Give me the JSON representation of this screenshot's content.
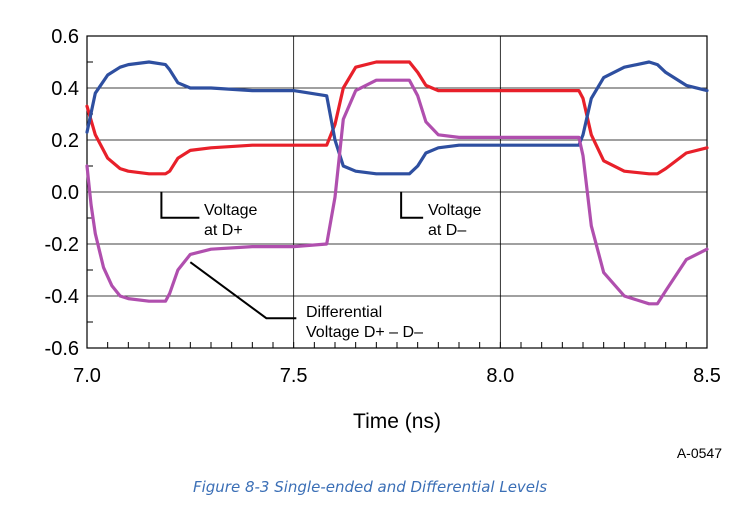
{
  "chart_data": {
    "type": "line",
    "xlabel": "Time (ns)",
    "ylabel": "",
    "xlim": [
      7.0,
      8.5
    ],
    "ylim": [
      -0.6,
      0.6
    ],
    "x_ticks": [
      7.0,
      7.5,
      8.0,
      8.5
    ],
    "x_tick_labels": [
      "7.0",
      "7.5",
      "8.0",
      "8.5"
    ],
    "y_ticks": [
      -0.6,
      -0.4,
      -0.2,
      0.0,
      0.2,
      0.4,
      0.6
    ],
    "y_tick_labels": [
      "-0.6",
      "-0.4",
      "-0.2",
      "0.0",
      "0.2",
      "0.4",
      "0.6"
    ],
    "grid": true,
    "series": [
      {
        "name": "Voltage at D+",
        "color": "#e8202a",
        "x": [
          7.0,
          7.02,
          7.05,
          7.08,
          7.1,
          7.15,
          7.19,
          7.2,
          7.22,
          7.25,
          7.3,
          7.4,
          7.5,
          7.58,
          7.6,
          7.62,
          7.65,
          7.7,
          7.78,
          7.8,
          7.82,
          7.85,
          7.9,
          8.0,
          8.1,
          8.19,
          8.2,
          8.22,
          8.25,
          8.3,
          8.36,
          8.38,
          8.4,
          8.45,
          8.5
        ],
        "y": [
          0.33,
          0.22,
          0.13,
          0.09,
          0.08,
          0.07,
          0.07,
          0.08,
          0.13,
          0.16,
          0.17,
          0.18,
          0.18,
          0.18,
          0.26,
          0.4,
          0.48,
          0.5,
          0.5,
          0.46,
          0.41,
          0.39,
          0.39,
          0.39,
          0.39,
          0.39,
          0.36,
          0.22,
          0.12,
          0.08,
          0.07,
          0.07,
          0.09,
          0.15,
          0.17
        ]
      },
      {
        "name": "Voltage at D-",
        "color": "#2e4fa0",
        "x": [
          7.0,
          7.02,
          7.05,
          7.08,
          7.1,
          7.15,
          7.19,
          7.2,
          7.22,
          7.25,
          7.3,
          7.4,
          7.5,
          7.58,
          7.6,
          7.62,
          7.65,
          7.7,
          7.78,
          7.8,
          7.82,
          7.85,
          7.9,
          8.0,
          8.1,
          8.19,
          8.2,
          8.22,
          8.25,
          8.3,
          8.36,
          8.38,
          8.4,
          8.45,
          8.5
        ],
        "y": [
          0.23,
          0.38,
          0.45,
          0.48,
          0.49,
          0.5,
          0.49,
          0.47,
          0.42,
          0.4,
          0.4,
          0.39,
          0.39,
          0.37,
          0.2,
          0.1,
          0.08,
          0.07,
          0.07,
          0.1,
          0.15,
          0.17,
          0.18,
          0.18,
          0.18,
          0.18,
          0.22,
          0.36,
          0.44,
          0.48,
          0.5,
          0.49,
          0.46,
          0.41,
          0.39
        ]
      },
      {
        "name": "Differential Voltage D+ – D–",
        "color": "#b04fae",
        "x": [
          7.0,
          7.01,
          7.02,
          7.04,
          7.06,
          7.08,
          7.1,
          7.15,
          7.19,
          7.2,
          7.22,
          7.25,
          7.3,
          7.4,
          7.5,
          7.58,
          7.6,
          7.62,
          7.65,
          7.7,
          7.78,
          7.8,
          7.82,
          7.85,
          7.9,
          8.0,
          8.1,
          8.19,
          8.2,
          8.22,
          8.25,
          8.3,
          8.36,
          8.38,
          8.4,
          8.45,
          8.5
        ],
        "y": [
          0.1,
          -0.05,
          -0.16,
          -0.29,
          -0.36,
          -0.4,
          -0.41,
          -0.42,
          -0.42,
          -0.39,
          -0.3,
          -0.24,
          -0.22,
          -0.21,
          -0.21,
          -0.2,
          -0.02,
          0.28,
          0.39,
          0.43,
          0.43,
          0.37,
          0.27,
          0.22,
          0.21,
          0.21,
          0.21,
          0.21,
          0.14,
          -0.13,
          -0.31,
          -0.4,
          -0.43,
          -0.43,
          -0.38,
          -0.26,
          -0.22
        ]
      }
    ],
    "annotations": [
      {
        "lines": [
          "Voltage",
          "at D+"
        ],
        "point": [
          7.18,
          0.07
        ]
      },
      {
        "lines": [
          "Voltage",
          "at D–"
        ],
        "point": [
          7.76,
          0.07
        ]
      },
      {
        "lines": [
          "Differential",
          "Voltage D+ – D–"
        ],
        "point": [
          7.25,
          -0.27
        ]
      }
    ],
    "figure_code": "A-0547"
  },
  "caption": "Figure  8-3  Single-ended and Differential Levels"
}
